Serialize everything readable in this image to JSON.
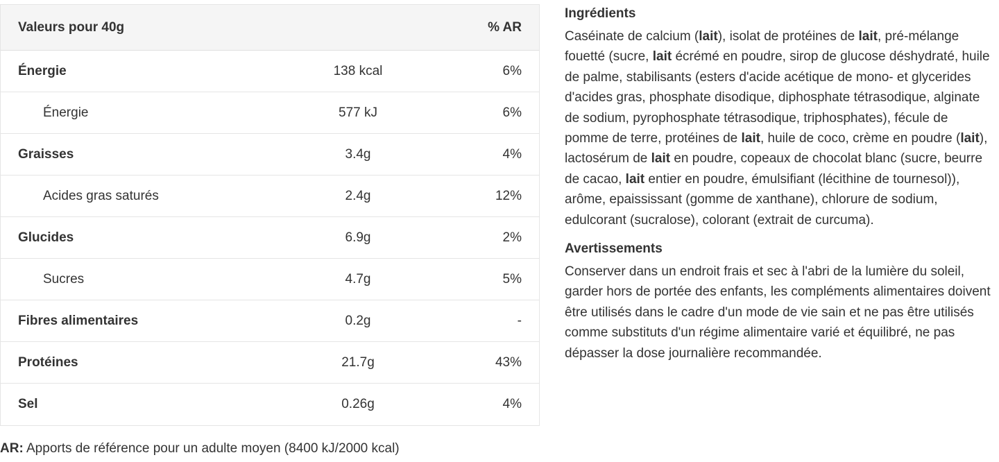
{
  "table": {
    "header": {
      "label": "Valeurs pour 40g",
      "value": "",
      "pct": "% AR"
    },
    "rows": [
      {
        "label": "Énergie",
        "value": "138 kcal",
        "pct": "6%",
        "kind": "main"
      },
      {
        "label": "Énergie",
        "value": "577 kJ",
        "pct": "6%",
        "kind": "sub"
      },
      {
        "label": "Graisses",
        "value": "3.4g",
        "pct": "4%",
        "kind": "main"
      },
      {
        "label": "Acides gras saturés",
        "value": "2.4g",
        "pct": "12%",
        "kind": "sub"
      },
      {
        "label": "Glucides",
        "value": "6.9g",
        "pct": "2%",
        "kind": "main"
      },
      {
        "label": "Sucres",
        "value": "4.7g",
        "pct": "5%",
        "kind": "sub"
      },
      {
        "label": "Fibres alimentaires",
        "value": "0.2g",
        "pct": "-",
        "kind": "main"
      },
      {
        "label": "Protéines",
        "value": "21.7g",
        "pct": "43%",
        "kind": "main"
      },
      {
        "label": "Sel",
        "value": "0.26g",
        "pct": "4%",
        "kind": "main"
      }
    ]
  },
  "footnote": {
    "abbr": "AR:",
    "text": " Apports de référence pour un adulte moyen (8400 kJ/2000 kcal)"
  },
  "ingredients": {
    "title": "Ingrédients",
    "segments": [
      {
        "t": "Caséinate de calcium (",
        "b": false
      },
      {
        "t": "lait",
        "b": true
      },
      {
        "t": "), isolat de protéines de ",
        "b": false
      },
      {
        "t": "lait",
        "b": true
      },
      {
        "t": ", pré-mélange fouetté (sucre, ",
        "b": false
      },
      {
        "t": "lait",
        "b": true
      },
      {
        "t": " écrémé en poudre, sirop de glucose déshydraté, huile de palme, stabilisants (esters d'acide acétique de mono- et glycerides d'acides gras, phosphate disodique, diphosphate tétrasodique, alginate de sodium, pyrophosphate tétrasodique, triphosphates), fécule de pomme de terre, protéines de ",
        "b": false
      },
      {
        "t": "lait",
        "b": true
      },
      {
        "t": ", huile de coco, crème en poudre (",
        "b": false
      },
      {
        "t": "lait",
        "b": true
      },
      {
        "t": "), lactosérum de ",
        "b": false
      },
      {
        "t": "lait",
        "b": true
      },
      {
        "t": " en poudre, copeaux de chocolat blanc (sucre, beurre de cacao, ",
        "b": false
      },
      {
        "t": "lait",
        "b": true
      },
      {
        "t": " entier en poudre, émulsifiant (lécithine de tournesol)), arôme, epaississant (gomme de xanthane), chlorure de sodium, edulcorant (sucralose), colorant (extrait de curcuma).",
        "b": false
      }
    ]
  },
  "warnings": {
    "title": "Avertissements",
    "text": "Conserver dans un endroit frais et sec à l'abri de la lumière du soleil, garder hors de portée des enfants, les compléments alimentaires doivent être utilisés dans le cadre d'un mode de vie sain et ne pas être utilisés comme substituts d'un régime alimentaire varié et équilibré, ne pas dépasser la dose journalière recommandée."
  }
}
